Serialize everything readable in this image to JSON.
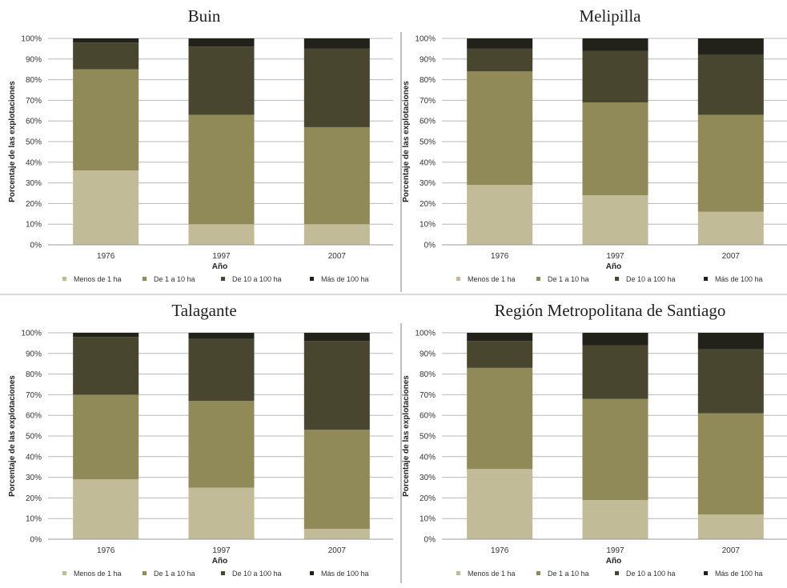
{
  "colors": {
    "Menos de 1 ha": "#c2bb97",
    "De 1 a 10 ha": "#8f8a58",
    "De 10 a 100 ha": "#48462f",
    "Más de 100 ha": "#22221a"
  },
  "chart_data": [
    {
      "type": "bar",
      "stacked": true,
      "title": "Buin",
      "xlabel": "Año",
      "ylabel": "Porcentaje de las explotaciones",
      "categories": [
        "1976",
        "1997",
        "2007"
      ],
      "yticks": [
        "0%",
        "10%",
        "20%",
        "30%",
        "40%",
        "50%",
        "60%",
        "70%",
        "80%",
        "90%",
        "100%"
      ],
      "ylim": [
        0,
        100
      ],
      "legend_position": "bottom",
      "series": [
        {
          "name": "Menos de 1 ha",
          "values": [
            36,
            10,
            10
          ]
        },
        {
          "name": "De 1 a 10 ha",
          "values": [
            49,
            53,
            47
          ]
        },
        {
          "name": "De 10 a 100 ha",
          "values": [
            13,
            33,
            38
          ]
        },
        {
          "name": "Más de 100 ha",
          "values": [
            2,
            4,
            5
          ]
        }
      ]
    },
    {
      "type": "bar",
      "stacked": true,
      "title": "Melipilla",
      "xlabel": "Año",
      "ylabel": "Porcentaje de las explotaciones",
      "categories": [
        "1976",
        "1997",
        "2007"
      ],
      "yticks": [
        "0%",
        "10%",
        "20%",
        "30%",
        "40%",
        "50%",
        "60%",
        "70%",
        "80%",
        "90%",
        "100%"
      ],
      "ylim": [
        0,
        100
      ],
      "legend_position": "bottom",
      "series": [
        {
          "name": "Menos de 1 ha",
          "values": [
            29,
            24,
            16
          ]
        },
        {
          "name": "De 1 a 10 ha",
          "values": [
            55,
            45,
            47
          ]
        },
        {
          "name": "De 10 a 100 ha",
          "values": [
            11,
            25,
            29
          ]
        },
        {
          "name": "Más de 100 ha",
          "values": [
            5,
            6,
            8
          ]
        }
      ]
    },
    {
      "type": "bar",
      "stacked": true,
      "title": "Talagante",
      "xlabel": "Año",
      "ylabel": "Porcentaje de las explotaciones",
      "categories": [
        "1976",
        "1997",
        "2007"
      ],
      "yticks": [
        "0%",
        "10%",
        "20%",
        "30%",
        "40%",
        "50%",
        "60%",
        "70%",
        "80%",
        "90%",
        "100%"
      ],
      "ylim": [
        0,
        100
      ],
      "legend_position": "bottom",
      "series": [
        {
          "name": "Menos de 1 ha",
          "values": [
            29,
            25,
            5
          ]
        },
        {
          "name": "De 1 a 10 ha",
          "values": [
            41,
            42,
            48
          ]
        },
        {
          "name": "De 10 a 100 ha",
          "values": [
            28,
            30,
            43
          ]
        },
        {
          "name": "Más de 100 ha",
          "values": [
            2,
            3,
            4
          ]
        }
      ]
    },
    {
      "type": "bar",
      "stacked": true,
      "title": "Región Metropolitana de Santiago",
      "xlabel": "Año",
      "ylabel": "Porcentaje de las explotaciones",
      "categories": [
        "1976",
        "1997",
        "2007"
      ],
      "yticks": [
        "0%",
        "10%",
        "20%",
        "30%",
        "40%",
        "50%",
        "60%",
        "70%",
        "80%",
        "90%",
        "100%"
      ],
      "ylim": [
        0,
        100
      ],
      "legend_position": "bottom",
      "series": [
        {
          "name": "Menos de 1 ha",
          "values": [
            34,
            19,
            12
          ]
        },
        {
          "name": "De 1 a 10 ha",
          "values": [
            49,
            49,
            49
          ]
        },
        {
          "name": "De 10 a 100 ha",
          "values": [
            13,
            26,
            31
          ]
        },
        {
          "name": "Más de 100 ha",
          "values": [
            4,
            6,
            8
          ]
        }
      ]
    }
  ]
}
